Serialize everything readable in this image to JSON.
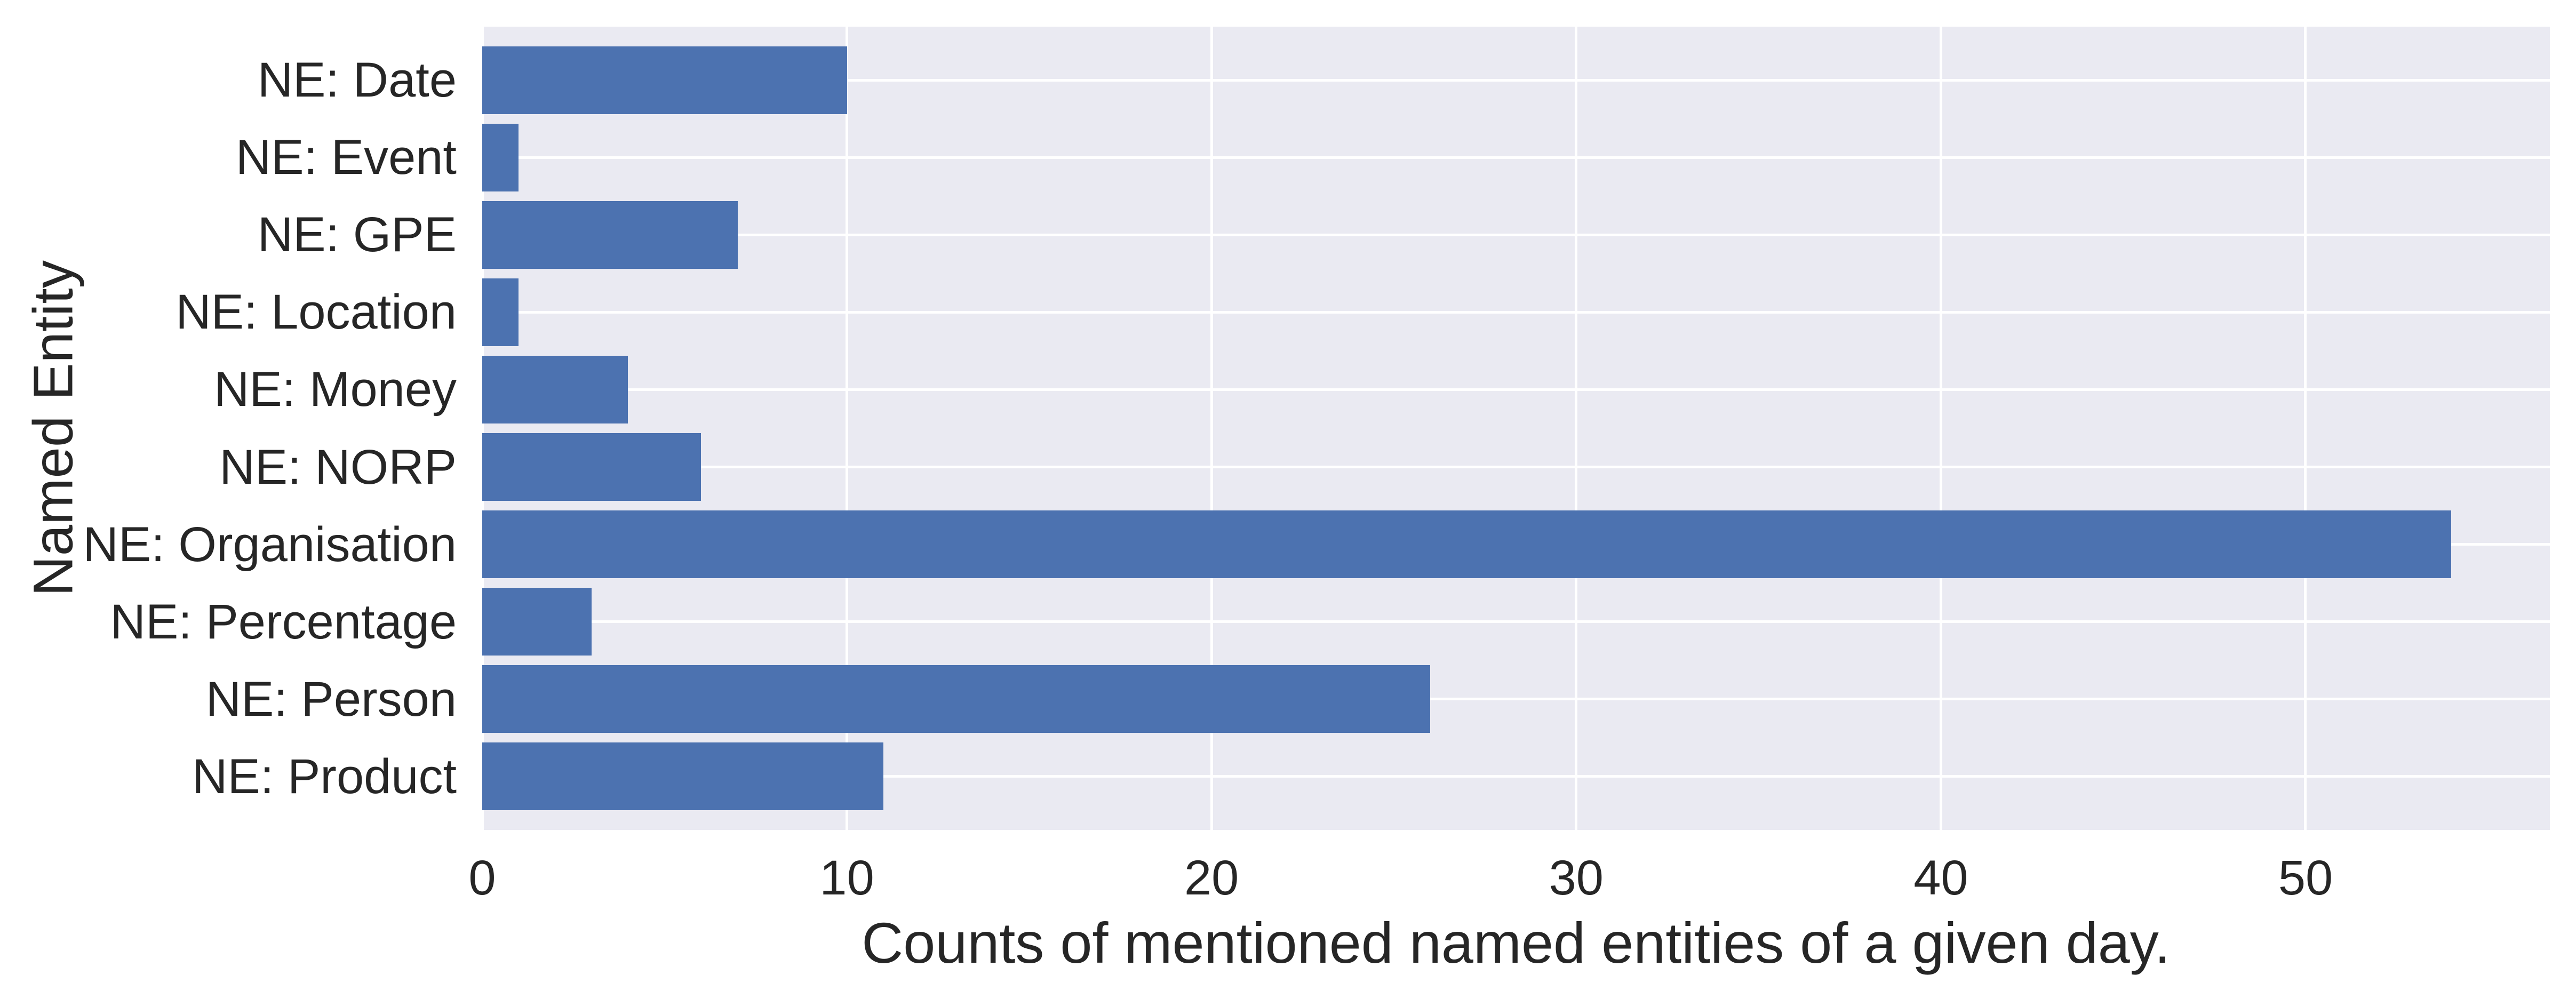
{
  "chart_data": {
    "type": "bar",
    "orientation": "horizontal",
    "xlabel": "Counts of mentioned named entities of a given day.",
    "ylabel": "Named Entity",
    "categories": [
      "NE: Date",
      "NE: Event",
      "NE: GPE",
      "NE: Location",
      "NE: Money",
      "NE: NORP",
      "NE: Organisation",
      "NE: Percentage",
      "NE: Person",
      "NE: Product"
    ],
    "values": [
      10,
      1,
      7,
      1,
      4,
      6,
      54,
      3,
      26,
      11
    ],
    "x_ticks": [
      0,
      10,
      20,
      30,
      40,
      50
    ],
    "xlim": [
      0,
      56.7
    ],
    "grid": true,
    "legend": false,
    "colors": {
      "bar": "#4C72B0",
      "plot_background": "#EAEAF2",
      "gridline": "#FFFFFF",
      "text": "#262626",
      "figure_background": "#FFFFFF"
    }
  }
}
